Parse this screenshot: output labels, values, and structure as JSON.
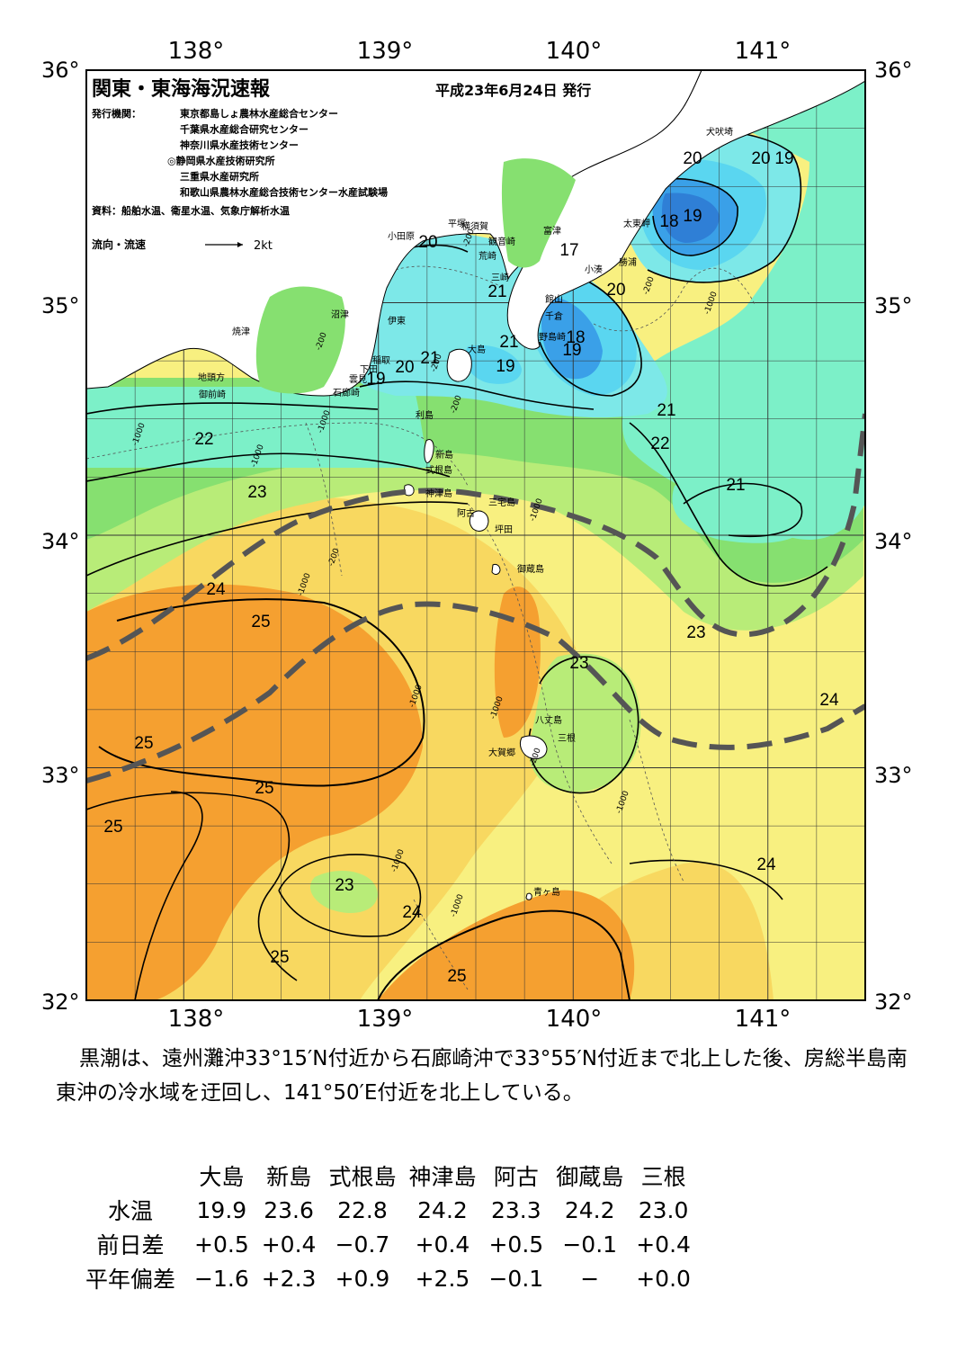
{
  "map": {
    "title": "関東・東海海況速報",
    "issue_date": "平成23年6月24日 発行",
    "issuer_label": "発行機関：",
    "issuers": [
      "東京都島しょ農林水産総合センター",
      "千葉県水産総合研究センター",
      "神奈川県水産技術センター",
      "◎静岡県水産技術研究所",
      "三重県水産研究所",
      "和歌山県農林水産総合技術センター水産試験場"
    ],
    "source": "資料：船舶水温、衛星水温、気象庁解析水温",
    "current_legend": "流向・流速",
    "current_scale": "2kt",
    "lon_labels": [
      "138°",
      "139°",
      "140°",
      "141°"
    ],
    "lat_labels": [
      "36°",
      "35°",
      "34°",
      "33°",
      "32°"
    ],
    "lon_range": [
      137.5,
      141.5
    ],
    "lat_range": [
      32,
      36
    ],
    "isotherm_labels": [
      "20",
      "19",
      "21",
      "20",
      "19",
      "21",
      "20",
      "19",
      "18",
      "19",
      "17",
      "21",
      "20",
      "18",
      "19",
      "20",
      "21",
      "22",
      "22",
      "23",
      "21",
      "24",
      "25",
      "23",
      "23",
      "24",
      "25",
      "25",
      "25",
      "23",
      "24",
      "24",
      "25",
      "25"
    ],
    "place_names": [
      "犬吠埼",
      "太東岬",
      "勝浦",
      "小湊",
      "館山",
      "千倉",
      "野島崎",
      "富津",
      "観音崎",
      "横須賀",
      "平塚",
      "小田原",
      "荒崎",
      "三崎",
      "沼津",
      "伊東",
      "稲取",
      "下田",
      "雲見",
      "石廊崎",
      "焼津",
      "地頭方",
      "御前崎",
      "大島",
      "利島",
      "新島",
      "式根島",
      "神津島",
      "三宅島",
      "阿古",
      "坪田",
      "御蔵島",
      "八丈島",
      "三根",
      "大賀郷",
      "青ヶ島"
    ],
    "depth_labels": [
      "-1000",
      "-200"
    ],
    "colors": {
      "c17": "#2f7fd6",
      "c18": "#3aa0e8",
      "c19": "#5ad6f0",
      "c20": "#7de8e8",
      "c21": "#7cf0c8",
      "c22": "#86e070",
      "c23": "#b8ec78",
      "c24": "#f8f080",
      "c24h": "#f8d860",
      "c25": "#f6c048",
      "c25h": "#f5a030",
      "land": "#ffffff",
      "kuroshio": "#555555"
    }
  },
  "summary": "黒潮は、遠州灘沖33°15′N付近から石廊崎沖で33°55′N付近まで北上した後、房総半島南東沖の冷水域を迂回し、141°50′E付近を北上している。",
  "table": {
    "columns": [
      "大島",
      "新島",
      "式根島",
      "神津島",
      "阿古",
      "御蔵島",
      "三根"
    ],
    "rows": [
      {
        "label": "水温",
        "values": [
          "19.9",
          "23.6",
          "22.8",
          "24.2",
          "23.3",
          "24.2",
          "23.0"
        ]
      },
      {
        "label": "前日差",
        "values": [
          "+0.5",
          "+0.4",
          "−0.7",
          "+0.4",
          "+0.5",
          "−0.1",
          "+0.4"
        ]
      },
      {
        "label": "平年偏差",
        "values": [
          "−1.6",
          "+2.3",
          "+0.9",
          "+2.5",
          "−0.1",
          "−",
          "+0.0"
        ]
      }
    ]
  }
}
